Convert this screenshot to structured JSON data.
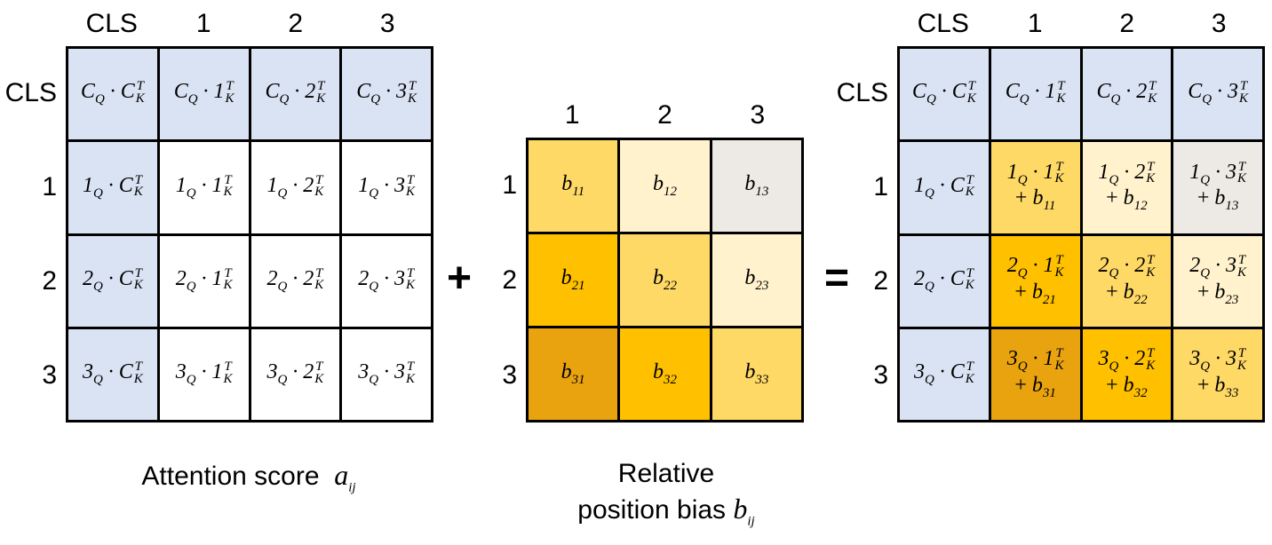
{
  "score_matrix": {
    "col_headers": [
      "CLS",
      "1",
      "2",
      "3"
    ],
    "row_headers": [
      "CLS",
      "1",
      "2",
      "3"
    ],
    "cells": [
      [
        "C_Q·C_K^T",
        "C_Q·1_K^T",
        "C_Q·2_K^T",
        "C_Q·3_K^T"
      ],
      [
        "1_Q·C_K^T",
        "1_Q·1_K^T",
        "1_Q·2_K^T",
        "1_Q·3_K^T"
      ],
      [
        "2_Q·C_K^T",
        "2_Q·1_K^T",
        "2_Q·2_K^T",
        "2_Q·3_K^T"
      ],
      [
        "3_Q·C_K^T",
        "3_Q·1_K^T",
        "3_Q·2_K^T",
        "3_Q·3_K^T"
      ]
    ],
    "colors": [
      [
        "#dae3f3",
        "#dae3f3",
        "#dae3f3",
        "#dae3f3"
      ],
      [
        "#dae3f3",
        "#ffffff",
        "#ffffff",
        "#ffffff"
      ],
      [
        "#dae3f3",
        "#ffffff",
        "#ffffff",
        "#ffffff"
      ],
      [
        "#dae3f3",
        "#ffffff",
        "#ffffff",
        "#ffffff"
      ]
    ],
    "caption_text": "Attention score",
    "caption_symbol": "a_ij"
  },
  "plus_sign": "+",
  "bias_matrix": {
    "col_headers": [
      "1",
      "2",
      "3"
    ],
    "row_headers": [
      "1",
      "2",
      "3"
    ],
    "cells": [
      [
        "b_11",
        "b_12",
        "b_13"
      ],
      [
        "b_21",
        "b_22",
        "b_23"
      ],
      [
        "b_31",
        "b_32",
        "b_33"
      ]
    ],
    "colors": [
      [
        "#fed966",
        "#fff2cc",
        "#ede9e5"
      ],
      [
        "#ffc000",
        "#fed966",
        "#fff2cc"
      ],
      [
        "#e9a30e",
        "#ffc000",
        "#fed966"
      ]
    ],
    "caption_line1": "Relative",
    "caption_line2": "position bias",
    "caption_symbol": "b_ij"
  },
  "equals_sign": "=",
  "result_matrix": {
    "col_headers": [
      "CLS",
      "1",
      "2",
      "3"
    ],
    "row_headers": [
      "CLS",
      "1",
      "2",
      "3"
    ],
    "cells": [
      [
        "C_Q·C_K^T",
        "C_Q·1_K^T",
        "C_Q·2_K^T",
        "C_Q·3_K^T"
      ],
      [
        "1_Q·C_K^T",
        "1_Q·1_K^T + b_11",
        "1_Q·2_K^T + b_12",
        "1_Q·3_K^T + b_13"
      ],
      [
        "2_Q·C_K^T",
        "2_Q·1_K^T + b_21",
        "2_Q·2_K^T + b_22",
        "2_Q·3_K^T + b_23"
      ],
      [
        "3_Q·C_K^T",
        "3_Q·1_K^T + b_31",
        "3_Q·2_K^T + b_32",
        "3_Q·3_K^T + b_33"
      ]
    ],
    "colors": [
      [
        "#dae3f3",
        "#dae3f3",
        "#dae3f3",
        "#dae3f3"
      ],
      [
        "#dae3f3",
        "#fed966",
        "#fff2cc",
        "#ede9e5"
      ],
      [
        "#dae3f3",
        "#ffc000",
        "#fed966",
        "#fff2cc"
      ],
      [
        "#dae3f3",
        "#e9a30e",
        "#ffc000",
        "#fed966"
      ]
    ]
  }
}
